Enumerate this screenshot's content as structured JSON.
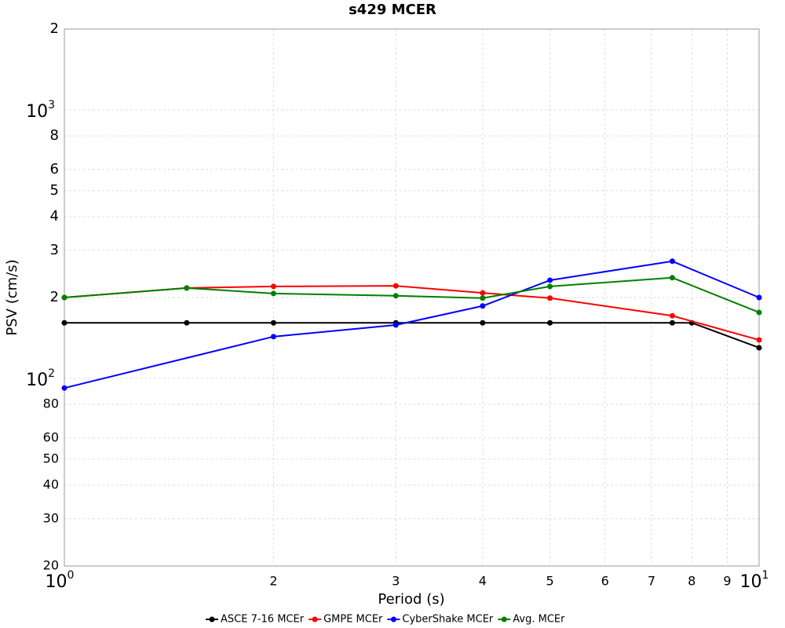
{
  "chart_data": {
    "type": "line",
    "title": "s429 MCER",
    "x_label": "Period (s)",
    "y_label": "PSV (cm/s)",
    "x_log": true,
    "y_log": true,
    "grid": true,
    "legend": "bottom",
    "xlim": [
      1,
      10
    ],
    "ylim": [
      20,
      2000
    ],
    "xticks": [
      {
        "value": 1,
        "label": "10",
        "superscript": "0"
      },
      2,
      3,
      4,
      5,
      6,
      7,
      8,
      9,
      {
        "value": 10,
        "label": "10",
        "superscript": "1"
      }
    ],
    "yticks": [
      20,
      30,
      40,
      50,
      60,
      80,
      {
        "value": 100,
        "label": "10",
        "superscript": "2"
      },
      {
        "value": 200,
        "label": "2"
      },
      {
        "value": 300,
        "label": "3"
      },
      {
        "value": 400,
        "label": "4"
      },
      {
        "value": 500,
        "label": "5"
      },
      {
        "value": 600,
        "label": "6"
      },
      {
        "value": 800,
        "label": "8"
      },
      {
        "value": 1000,
        "label": "10",
        "superscript": "3"
      },
      {
        "value": 2000,
        "label": "2"
      }
    ],
    "series": [
      {
        "name": "ASCE 7-16 MCEr",
        "color": "#000000",
        "x": [
          1,
          1.5,
          2,
          3,
          4,
          5,
          7.5,
          8,
          10
        ],
        "values": [
          161,
          161,
          161,
          161,
          161,
          161,
          161,
          161,
          130
        ]
      },
      {
        "name": "GMPE MCEr",
        "color": "#ff0000",
        "x": [
          1,
          1.5,
          2,
          3,
          4,
          5,
          7.5,
          10
        ],
        "values": [
          200,
          217,
          220,
          221,
          208,
          199,
          171,
          139
        ]
      },
      {
        "name": "CyberShake MCEr",
        "color": "#0000ff",
        "x": [
          1,
          2,
          3,
          4,
          5,
          7.5,
          10
        ],
        "values": [
          92,
          143,
          158,
          186,
          232,
          273,
          200
        ]
      },
      {
        "name": "Avg. MCEr",
        "color": "#008000",
        "x": [
          1,
          1.5,
          2,
          3,
          4,
          5,
          7.5,
          10
        ],
        "values": [
          200,
          217,
          207,
          203,
          199,
          220,
          237,
          176
        ]
      }
    ]
  }
}
